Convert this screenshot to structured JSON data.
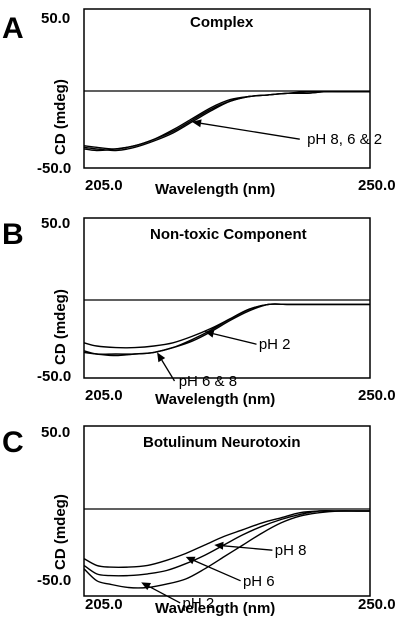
{
  "chart_data": [
    {
      "type": "line",
      "panel_label": "A",
      "title": "Complex",
      "xlabel": "Wavelength (nm)",
      "ylabel": "CD (mdeg)",
      "xlim": [
        205.0,
        250.0
      ],
      "ylim": [
        -50.0,
        50.0
      ],
      "x_tick_labels": [
        "205.0",
        "250.0"
      ],
      "y_tick_labels": [
        "50.0",
        "-50.0"
      ],
      "grid": false,
      "series": [
        {
          "x": [
            205,
            207,
            210,
            213,
            216,
            219,
            222,
            225,
            228,
            231,
            234,
            237,
            240,
            243,
            246,
            250
          ],
          "values": [
            -37,
            -38,
            -39,
            -37,
            -33,
            -28,
            -21,
            -14,
            -8,
            -5,
            -4,
            -3,
            -3,
            -2,
            -2,
            -2
          ]
        },
        {
          "x": [
            205,
            207,
            210,
            213,
            216,
            219,
            222,
            225,
            228,
            231,
            234,
            237,
            240,
            243,
            246,
            250
          ],
          "values": [
            -38,
            -39,
            -38,
            -36,
            -32,
            -27,
            -20,
            -13,
            -8,
            -5,
            -4,
            -3,
            -3,
            -2,
            -2,
            -2
          ]
        },
        {
          "x": [
            205,
            207,
            210,
            213,
            216,
            219,
            222,
            225,
            228,
            231,
            234,
            237,
            240,
            243,
            246,
            250
          ],
          "values": [
            -36,
            -37,
            -38,
            -36,
            -32,
            -26,
            -19,
            -12,
            -7,
            -5,
            -4,
            -3,
            -2,
            -2,
            -2,
            -2
          ]
        }
      ],
      "annotations": [
        {
          "text": "pH 8, 6 & 2",
          "x": 246.0,
          "y": -35,
          "arrow_to": [
            222.0,
            -21
          ]
        }
      ]
    },
    {
      "type": "line",
      "panel_label": "B",
      "title": "Non-toxic Component",
      "xlabel": "Wavelength (nm)",
      "ylabel": "CD (mdeg)",
      "xlim": [
        205.0,
        250.0
      ],
      "ylim": [
        -50.0,
        50.0
      ],
      "x_tick_labels": [
        "205.0",
        "250.0"
      ],
      "y_tick_labels": [
        "50.0",
        "-50.0"
      ],
      "grid": false,
      "series": [
        {
          "x": [
            205,
            207,
            210,
            213,
            216,
            219,
            222,
            225,
            228,
            231,
            234,
            237,
            240,
            243,
            246,
            250
          ],
          "values": [
            -28,
            -30,
            -31,
            -31,
            -30,
            -28,
            -24,
            -19,
            -13,
            -7,
            -4,
            -4,
            -4,
            -4,
            -4,
            -4
          ]
        },
        {
          "x": [
            205,
            207,
            210,
            213,
            216,
            219,
            222,
            225,
            228,
            231,
            234,
            237,
            240,
            243,
            246,
            250
          ],
          "values": [
            -33,
            -35,
            -35,
            -35,
            -34,
            -31,
            -27,
            -21,
            -14,
            -8,
            -4,
            -4,
            -4,
            -4,
            -4,
            -4
          ]
        },
        {
          "x": [
            205,
            207,
            210,
            213,
            216,
            219,
            222,
            225,
            228,
            231,
            234,
            237,
            240,
            243,
            246,
            250
          ],
          "values": [
            -34,
            -35,
            -36,
            -35,
            -34,
            -31,
            -26,
            -20,
            -13,
            -7,
            -4,
            -4,
            -4,
            -4,
            -4,
            -4
          ]
        }
      ],
      "annotations": [
        {
          "text": "pH 2",
          "x": 235.0,
          "y": -32,
          "arrow_to": [
            224.0,
            -21
          ]
        },
        {
          "text": "pH 6 & 8",
          "x": 224.5,
          "y": -55,
          "arrow_to": [
            216.5,
            -34
          ]
        }
      ]
    },
    {
      "type": "line",
      "panel_label": "C",
      "title": "Botulinum Neurotoxin",
      "xlabel": "Wavelength (nm)",
      "ylabel": "CD (mdeg)",
      "xlim": [
        205.0,
        250.0
      ],
      "ylim": [
        -50.0,
        50.0
      ],
      "x_tick_labels": [
        "205.0",
        "250.0"
      ],
      "y_tick_labels": [
        "50.0",
        "-50.0"
      ],
      "grid": false,
      "series": [
        {
          "x": [
            205,
            207,
            209,
            212,
            215,
            218,
            221,
            224,
            227,
            230,
            233,
            236,
            239,
            242,
            245,
            248,
            250
          ],
          "values": [
            -28,
            -32,
            -33,
            -33,
            -32,
            -29,
            -25,
            -20,
            -15,
            -11,
            -7,
            -4,
            -1,
            0,
            0,
            0,
            0
          ]
        },
        {
          "x": [
            205,
            207,
            209,
            212,
            215,
            218,
            221,
            224,
            227,
            230,
            233,
            236,
            239,
            242,
            245,
            248,
            250
          ],
          "values": [
            -32,
            -37,
            -38,
            -38,
            -37,
            -35,
            -31,
            -26,
            -20,
            -14,
            -9,
            -5,
            -2,
            0,
            0,
            0,
            0
          ]
        },
        {
          "x": [
            205,
            207,
            209,
            212,
            215,
            218,
            221,
            224,
            227,
            230,
            233,
            236,
            239,
            242,
            245,
            248,
            250
          ],
          "values": [
            -34,
            -41,
            -43,
            -45,
            -45,
            -43,
            -40,
            -34,
            -27,
            -20,
            -13,
            -7,
            -3,
            -1,
            0,
            0,
            0
          ]
        }
      ],
      "annotations": [
        {
          "text": "pH 8",
          "x": 237.5,
          "y": -26,
          "arrow_to": [
            225.5,
            -20
          ]
        },
        {
          "text": "pH 6",
          "x": 232.5,
          "y": -44,
          "arrow_to": [
            221.0,
            -27
          ]
        },
        {
          "text": "pH 2",
          "x": 223.0,
          "y": -57,
          "arrow_to": [
            214.0,
            -42
          ]
        }
      ]
    }
  ]
}
